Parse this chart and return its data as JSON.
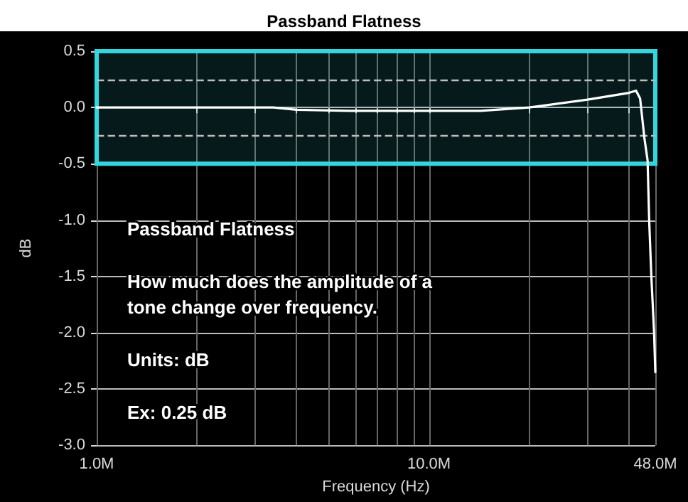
{
  "chart_data": {
    "type": "line",
    "title": "Passband Flatness",
    "xlabel": "Frequency (Hz)",
    "ylabel": "dB",
    "x": [
      1000000,
      3400000,
      4000000,
      5750000,
      14300000,
      20000000,
      30000000,
      40000000,
      42000000,
      43200000,
      44500000,
      45500000,
      46000000,
      46700000,
      47600000,
      48000000
    ],
    "series": [
      {
        "color": "#ffffff",
        "values": [
          0,
          0,
          -0.02,
          -0.03,
          -0.03,
          0,
          0.07,
          0.13,
          0.15,
          0.08,
          -0.27,
          -0.47,
          -1.0,
          -1.5,
          -2.0,
          -2.35
        ]
      }
    ],
    "log": "x",
    "marker": "none",
    "line_style": "solid",
    "grid": true,
    "xlim": [
      1000000,
      48000000
    ],
    "xticks": [
      {
        "value": 1000000,
        "label": "1.0M"
      },
      {
        "value": 2000000,
        "label": null
      },
      {
        "value": 3000000,
        "label": null
      },
      {
        "value": 4000000,
        "label": null
      },
      {
        "value": 5000000,
        "label": null
      },
      {
        "value": 6000000,
        "label": null
      },
      {
        "value": 7000000,
        "label": null
      },
      {
        "value": 8000000,
        "label": null
      },
      {
        "value": 9000000,
        "label": null
      },
      {
        "value": 10000000,
        "label": "10.0M"
      },
      {
        "value": 20000000,
        "label": null
      },
      {
        "value": 30000000,
        "label": null
      },
      {
        "value": 40000000,
        "label": null
      },
      {
        "value": 48000000,
        "label": "48.0M"
      }
    ],
    "ylim": [
      -3.0,
      0.5
    ],
    "yticks": [
      {
        "value": -3.0,
        "label": "-3.0"
      },
      {
        "value": -2.5,
        "label": "-2.5"
      },
      {
        "value": -2.0,
        "label": "-2.0"
      },
      {
        "value": -1.5,
        "label": "-1.5"
      },
      {
        "value": -1.0,
        "label": "-1.0"
      },
      {
        "value": -0.5,
        "label": "-0.5"
      },
      {
        "value": 0.0,
        "label": "0.0"
      },
      {
        "value": 0.5,
        "label": "0.5"
      }
    ],
    "bands": [
      {
        "axis": "y",
        "from": -0.5,
        "to": 0.5,
        "color": "#33d6dc"
      }
    ],
    "ref_lines": [
      {
        "axis": "y",
        "value": 0.25,
        "color": "#bdbdbd",
        "line_style": "dashed"
      },
      {
        "axis": "y",
        "value": -0.25,
        "color": "#bdbdbd",
        "line_style": "dashed"
      }
    ],
    "annotations": [
      "Passband Flatness",
      "How much does the amplitude of a tone change over frequency.",
      "Units: dB",
      "Ex: 0.25 dB"
    ]
  }
}
